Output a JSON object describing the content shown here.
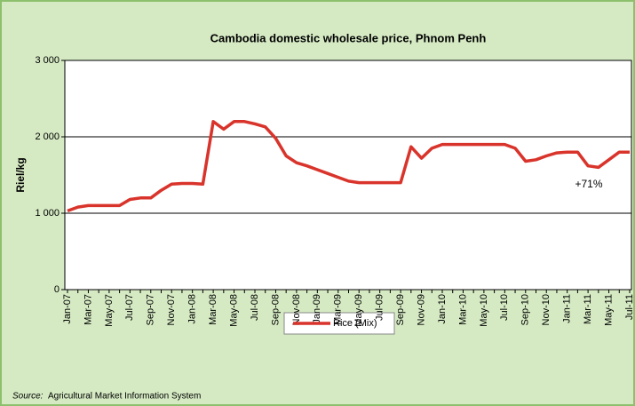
{
  "chart_data": {
    "type": "line",
    "title": "Cambodia domestic wholesale price, Phnom Penh",
    "y_label": "Riel/kg",
    "categories": [
      "Jan-07",
      null,
      "Mar-07",
      null,
      "May-07",
      null,
      "Jul-07",
      null,
      "Sep-07",
      null,
      "Nov-07",
      null,
      "Jan-08",
      null,
      "Mar-08",
      null,
      "May-08",
      null,
      "Jul-08",
      null,
      "Sep-08",
      null,
      "Nov-08",
      null,
      "Jan-09",
      null,
      "Mar-09",
      null,
      "May-09",
      null,
      "Jul-09",
      null,
      "Sep-09",
      null,
      "Nov-09",
      null,
      "Jan-10",
      null,
      "Mar-10",
      null,
      "May-10",
      null,
      "Jul-10",
      null,
      "Sep-10",
      null,
      "Nov-10",
      null,
      "Jan-11",
      null,
      "Mar-11",
      null,
      "May-11",
      null,
      "Jul-11"
    ],
    "series": [
      {
        "name": "Rice (Mix)",
        "color": "#d9342b",
        "values": [
          1030,
          1080,
          1100,
          1100,
          1100,
          1100,
          1180,
          1200,
          1200,
          1300,
          1380,
          1390,
          1390,
          1380,
          2200,
          2100,
          2200,
          2200,
          2170,
          2130,
          1980,
          1750,
          1660,
          1620,
          1570,
          1520,
          1470,
          1420,
          1400,
          1400,
          1400,
          1400,
          1400,
          1870,
          1720,
          1850,
          1900,
          1900,
          1900,
          1900,
          1900,
          1900,
          1900,
          1850,
          1680,
          1700,
          1750,
          1790,
          1800,
          1800,
          1620,
          1600,
          1700,
          1800,
          1800
        ]
      }
    ],
    "ylim": [
      0,
      3000
    ],
    "yticks": [
      0,
      {
        "value": 1000,
        "label": "1 000"
      },
      {
        "value": 2000,
        "label": "2 000"
      },
      {
        "value": 3000,
        "label": "3 000"
      }
    ],
    "grid": true,
    "annotation": "+71%",
    "source_label": "Source:",
    "source_text": "Agricultural Market Information System"
  }
}
